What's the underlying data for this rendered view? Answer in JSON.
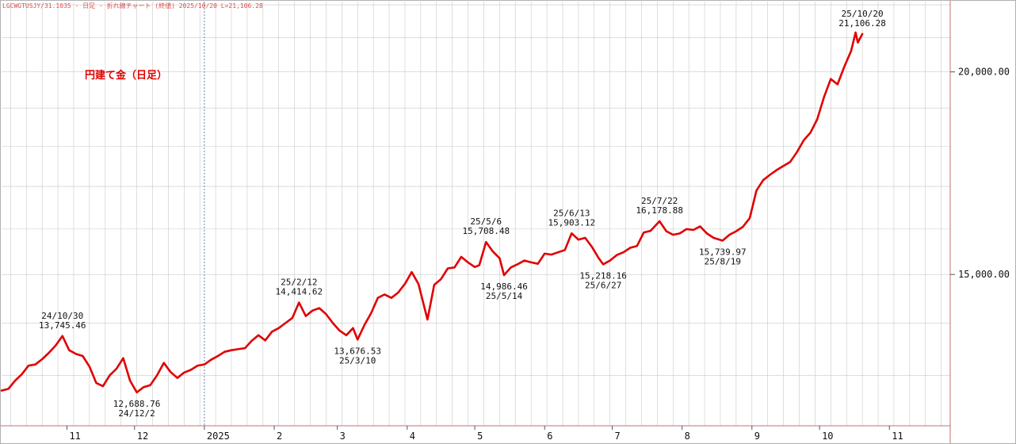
{
  "header": "LGCWGTUSJY/31.1035 - 日足 - 折れ線チャート (終値) 2025/10/20 L=21,106.28",
  "colors": {
    "line": "#e00000",
    "grid": "#c9c9c9",
    "frame": "#c07070"
  },
  "chart_data": {
    "type": "line",
    "title": "円建て金（日足）",
    "xlabel": "",
    "ylabel": "",
    "ylim": [
      12100,
      22100
    ],
    "yscale": "log",
    "xlim": [
      "2024-10-03",
      "2025-11-28"
    ],
    "grid": true,
    "y_ticks": [
      {
        "value": 15000,
        "label": "15,000.00"
      },
      {
        "value": 20000,
        "label": "20,000.00"
      }
    ],
    "x_ticks": [
      {
        "date": "2024-11-01",
        "label": "11"
      },
      {
        "date": "2024-12-01",
        "label": "12"
      },
      {
        "date": "2025-01-01",
        "label": "2025"
      },
      {
        "date": "2025-02-01",
        "label": "2"
      },
      {
        "date": "2025-03-01",
        "label": "3"
      },
      {
        "date": "2025-04-01",
        "label": "4"
      },
      {
        "date": "2025-05-01",
        "label": "5"
      },
      {
        "date": "2025-06-01",
        "label": "6"
      },
      {
        "date": "2025-07-01",
        "label": "7"
      },
      {
        "date": "2025-08-01",
        "label": "8"
      },
      {
        "date": "2025-09-01",
        "label": "9"
      },
      {
        "date": "2025-10-01",
        "label": "10"
      },
      {
        "date": "2025-11-01",
        "label": "11"
      }
    ],
    "series": [
      {
        "name": "",
        "points": [
          [
            "2024-10-03",
            12720
          ],
          [
            "2024-10-06",
            12750
          ],
          [
            "2024-10-09",
            12900
          ],
          [
            "2024-10-12",
            13020
          ],
          [
            "2024-10-15",
            13180
          ],
          [
            "2024-10-18",
            13200
          ],
          [
            "2024-10-21",
            13300
          ],
          [
            "2024-10-24",
            13420
          ],
          [
            "2024-10-27",
            13560
          ],
          [
            "2024-10-30",
            13745
          ],
          [
            "2024-11-02",
            13470
          ],
          [
            "2024-11-05",
            13400
          ],
          [
            "2024-11-08",
            13360
          ],
          [
            "2024-11-11",
            13160
          ],
          [
            "2024-11-14",
            12860
          ],
          [
            "2024-11-17",
            12800
          ],
          [
            "2024-11-20",
            13000
          ],
          [
            "2024-11-23",
            13120
          ],
          [
            "2024-11-26",
            13320
          ],
          [
            "2024-11-29",
            12900
          ],
          [
            "2024-12-02",
            12688
          ],
          [
            "2024-12-05",
            12780
          ],
          [
            "2024-12-08",
            12820
          ],
          [
            "2024-12-11",
            13000
          ],
          [
            "2024-12-14",
            13230
          ],
          [
            "2024-12-17",
            13060
          ],
          [
            "2024-12-20",
            12950
          ],
          [
            "2024-12-23",
            13050
          ],
          [
            "2024-12-26",
            13100
          ],
          [
            "2024-12-29",
            13180
          ],
          [
            "2025-01-01",
            13200
          ],
          [
            "2025-01-04",
            13290
          ],
          [
            "2025-01-07",
            13360
          ],
          [
            "2025-01-10",
            13440
          ],
          [
            "2025-01-13",
            13470
          ],
          [
            "2025-01-16",
            13490
          ],
          [
            "2025-01-19",
            13510
          ],
          [
            "2025-01-22",
            13650
          ],
          [
            "2025-01-25",
            13760
          ],
          [
            "2025-01-28",
            13660
          ],
          [
            "2025-01-31",
            13830
          ],
          [
            "2025-02-03",
            13900
          ],
          [
            "2025-02-06",
            14000
          ],
          [
            "2025-02-09",
            14100
          ],
          [
            "2025-02-12",
            14414
          ],
          [
            "2025-02-15",
            14140
          ],
          [
            "2025-02-18",
            14250
          ],
          [
            "2025-02-21",
            14300
          ],
          [
            "2025-02-24",
            14180
          ],
          [
            "2025-02-27",
            14000
          ],
          [
            "2025-03-02",
            13850
          ],
          [
            "2025-03-05",
            13760
          ],
          [
            "2025-03-08",
            13900
          ],
          [
            "2025-03-10",
            13676
          ],
          [
            "2025-03-13",
            13960
          ],
          [
            "2025-03-16",
            14200
          ],
          [
            "2025-03-19",
            14510
          ],
          [
            "2025-03-22",
            14580
          ],
          [
            "2025-03-25",
            14510
          ],
          [
            "2025-03-28",
            14620
          ],
          [
            "2025-03-31",
            14800
          ],
          [
            "2025-04-03",
            15050
          ],
          [
            "2025-04-06",
            14800
          ],
          [
            "2025-04-10",
            14070
          ],
          [
            "2025-04-13",
            14780
          ],
          [
            "2025-04-16",
            14900
          ],
          [
            "2025-04-19",
            15130
          ],
          [
            "2025-04-22",
            15150
          ],
          [
            "2025-04-25",
            15380
          ],
          [
            "2025-04-28",
            15260
          ],
          [
            "2025-05-01",
            15160
          ],
          [
            "2025-05-03",
            15200
          ],
          [
            "2025-05-06",
            15708
          ],
          [
            "2025-05-09",
            15500
          ],
          [
            "2025-05-12",
            15350
          ],
          [
            "2025-05-14",
            14986
          ],
          [
            "2025-05-17",
            15150
          ],
          [
            "2025-05-20",
            15220
          ],
          [
            "2025-05-23",
            15300
          ],
          [
            "2025-05-26",
            15260
          ],
          [
            "2025-05-29",
            15230
          ],
          [
            "2025-06-01",
            15450
          ],
          [
            "2025-06-04",
            15430
          ],
          [
            "2025-06-07",
            15480
          ],
          [
            "2025-06-10",
            15530
          ],
          [
            "2025-06-13",
            15903
          ],
          [
            "2025-06-16",
            15760
          ],
          [
            "2025-06-19",
            15800
          ],
          [
            "2025-06-22",
            15600
          ],
          [
            "2025-06-25",
            15350
          ],
          [
            "2025-06-27",
            15218
          ],
          [
            "2025-06-30",
            15300
          ],
          [
            "2025-07-03",
            15420
          ],
          [
            "2025-07-06",
            15480
          ],
          [
            "2025-07-09",
            15580
          ],
          [
            "2025-07-12",
            15620
          ],
          [
            "2025-07-15",
            15920
          ],
          [
            "2025-07-18",
            15960
          ],
          [
            "2025-07-22",
            16178
          ],
          [
            "2025-07-25",
            15950
          ],
          [
            "2025-07-28",
            15870
          ],
          [
            "2025-07-31",
            15900
          ],
          [
            "2025-08-03",
            16000
          ],
          [
            "2025-08-06",
            15980
          ],
          [
            "2025-08-09",
            16060
          ],
          [
            "2025-08-12",
            15900
          ],
          [
            "2025-08-15",
            15800
          ],
          [
            "2025-08-19",
            15739
          ],
          [
            "2025-08-22",
            15870
          ],
          [
            "2025-08-25",
            15950
          ],
          [
            "2025-08-28",
            16050
          ],
          [
            "2025-08-31",
            16250
          ],
          [
            "2025-09-03",
            16900
          ],
          [
            "2025-09-06",
            17150
          ],
          [
            "2025-09-09",
            17280
          ],
          [
            "2025-09-12",
            17400
          ],
          [
            "2025-09-15",
            17500
          ],
          [
            "2025-09-18",
            17600
          ],
          [
            "2025-09-21",
            17850
          ],
          [
            "2025-09-24",
            18150
          ],
          [
            "2025-09-27",
            18350
          ],
          [
            "2025-09-30",
            18700
          ],
          [
            "2025-10-03",
            19300
          ],
          [
            "2025-10-06",
            19800
          ],
          [
            "2025-10-09",
            19650
          ],
          [
            "2025-10-12",
            20150
          ],
          [
            "2025-10-15",
            20600
          ],
          [
            "2025-10-17",
            21150
          ],
          [
            "2025-10-18",
            20850
          ],
          [
            "2025-10-20",
            21106
          ]
        ]
      }
    ],
    "annotations": [
      {
        "date": "2024-10-30",
        "value": 13745,
        "position": "above",
        "lines": [
          "24/10/30",
          "13,745.46"
        ]
      },
      {
        "date": "2024-12-02",
        "value": 12688,
        "position": "below",
        "lines": [
          "12,688.76",
          "24/12/2"
        ]
      },
      {
        "date": "2025-02-12",
        "value": 14414,
        "position": "above",
        "lines": [
          "25/2/12",
          "14,414.62"
        ]
      },
      {
        "date": "2025-03-10",
        "value": 13676,
        "position": "below",
        "lines": [
          "13,676.53",
          "25/3/10"
        ]
      },
      {
        "date": "2025-05-06",
        "value": 15708,
        "position": "above",
        "lines": [
          "25/5/6",
          "15,708.48"
        ]
      },
      {
        "date": "2025-05-14",
        "value": 14986,
        "position": "below",
        "lines": [
          "14,986.46",
          "25/5/14"
        ]
      },
      {
        "date": "2025-06-13",
        "value": 15903,
        "position": "above",
        "lines": [
          "25/6/13",
          "15,903.12"
        ]
      },
      {
        "date": "2025-06-27",
        "value": 15218,
        "position": "below",
        "lines": [
          "15,218.16",
          "25/6/27"
        ]
      },
      {
        "date": "2025-07-22",
        "value": 16178,
        "position": "above",
        "lines": [
          "25/7/22",
          "16,178.88"
        ]
      },
      {
        "date": "2025-08-19",
        "value": 15739,
        "position": "below",
        "lines": [
          "15,739.97",
          "25/8/19"
        ]
      },
      {
        "date": "2025-10-20",
        "value": 21106,
        "position": "above",
        "lines": [
          "25/10/20",
          "21,106.28"
        ]
      }
    ]
  }
}
